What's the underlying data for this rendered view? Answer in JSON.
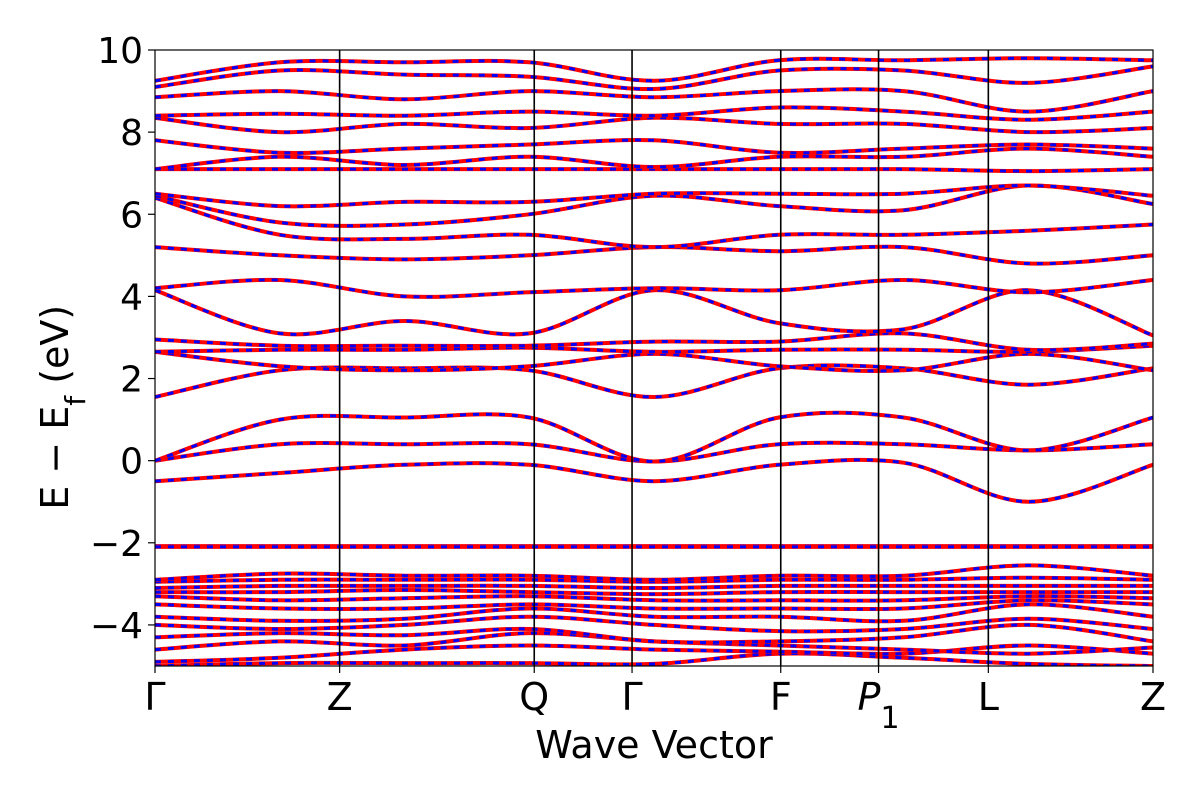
{
  "chart_data": {
    "type": "line",
    "title": "",
    "xlabel": "Wave Vector",
    "ylabel": "E − E_f (eV)",
    "ylabel_parts": {
      "main": "E − E",
      "sub": "f",
      "unit": " (eV)"
    },
    "ylim": [
      -5,
      10
    ],
    "y_ticks": [
      -4,
      -2,
      0,
      2,
      4,
      6,
      8,
      10
    ],
    "y_tick_labels": [
      "−4",
      "−2",
      "0",
      "2",
      "4",
      "6",
      "8",
      "10"
    ],
    "grid": false,
    "legend": "none",
    "k_points": [
      {
        "label": "Γ",
        "x": 0.0
      },
      {
        "label": "Z",
        "x": 0.185
      },
      {
        "label": "Q",
        "x": 0.38
      },
      {
        "label": "Γ",
        "x": 0.478
      },
      {
        "label": "F",
        "x": 0.627
      },
      {
        "label": "P",
        "sub": "1",
        "italic": true,
        "x": 0.725
      },
      {
        "label": "L",
        "x": 0.835
      },
      {
        "label": "Z",
        "x": 1.0
      }
    ],
    "series_style": [
      {
        "color": "#ff0000",
        "style": "solid"
      },
      {
        "color": "#0000ff",
        "style": "dashed"
      }
    ],
    "bands": [
      [
        -5.0,
        -4.93,
        -4.93,
        -4.93,
        -4.95,
        -4.7,
        -4.8,
        -4.95,
        -5.0
      ],
      [
        -4.9,
        -4.8,
        -4.6,
        -4.5,
        -4.6,
        -4.65,
        -4.7,
        -4.5,
        -4.7
      ],
      [
        -4.6,
        -4.4,
        -4.5,
        -4.2,
        -4.4,
        -4.5,
        -4.6,
        -4.7,
        -4.55
      ],
      [
        -4.3,
        -4.2,
        -4.25,
        -4.1,
        -4.4,
        -4.4,
        -4.3,
        -4.0,
        -4.4
      ],
      [
        -4.0,
        -4.1,
        -4.0,
        -3.8,
        -4.0,
        -4.15,
        -4.1,
        -3.85,
        -4.1
      ],
      [
        -3.8,
        -3.9,
        -3.85,
        -3.6,
        -3.8,
        -3.8,
        -3.9,
        -3.5,
        -3.8
      ],
      [
        -3.5,
        -3.6,
        -3.6,
        -3.5,
        -3.6,
        -3.6,
        -3.6,
        -3.4,
        -3.5
      ],
      [
        -3.3,
        -3.4,
        -3.35,
        -3.3,
        -3.4,
        -3.4,
        -3.4,
        -3.3,
        -3.35
      ],
      [
        -3.2,
        -3.2,
        -3.15,
        -3.2,
        -3.25,
        -3.2,
        -3.2,
        -3.2,
        -3.2
      ],
      [
        -3.1,
        -3.05,
        -3.05,
        -3.05,
        -3.1,
        -3.05,
        -3.05,
        -3.05,
        -3.05
      ],
      [
        -2.95,
        -2.9,
        -2.9,
        -2.9,
        -2.95,
        -2.9,
        -2.9,
        -2.85,
        -2.9
      ],
      [
        -2.9,
        -2.75,
        -2.8,
        -2.8,
        -2.9,
        -2.8,
        -2.8,
        -2.55,
        -2.8
      ],
      [
        -2.08,
        -2.08,
        -2.08,
        -2.08,
        -2.08,
        -2.08,
        -2.08,
        -2.08,
        -2.08
      ],
      [
        -2.1,
        -2.1,
        -2.1,
        -2.1,
        -2.1,
        -2.1,
        -2.1,
        -2.1,
        -2.1
      ],
      [
        -0.5,
        -0.3,
        -0.1,
        -0.1,
        -0.5,
        -0.1,
        -0.05,
        -1.0,
        -0.1
      ],
      [
        0.0,
        0.4,
        0.4,
        0.4,
        -0.02,
        0.4,
        0.4,
        0.25,
        0.4
      ],
      [
        0.0,
        1.0,
        1.05,
        1.05,
        -0.02,
        1.05,
        1.05,
        0.25,
        1.05
      ],
      [
        1.55,
        2.2,
        2.25,
        2.2,
        1.55,
        2.25,
        2.25,
        1.85,
        2.25
      ],
      [
        2.65,
        2.3,
        2.2,
        2.3,
        2.6,
        2.3,
        2.2,
        2.6,
        2.2
      ],
      [
        2.65,
        2.7,
        2.7,
        2.75,
        2.65,
        2.7,
        2.7,
        2.65,
        2.8
      ],
      [
        2.95,
        2.8,
        2.8,
        2.8,
        2.9,
        2.9,
        3.1,
        2.7,
        2.85
      ],
      [
        4.15,
        3.1,
        3.4,
        3.1,
        4.15,
        3.35,
        3.2,
        4.15,
        3.05
      ],
      [
        4.2,
        4.4,
        4.0,
        4.1,
        4.2,
        4.15,
        4.4,
        4.1,
        4.4
      ],
      [
        5.2,
        5.0,
        4.9,
        5.0,
        5.2,
        5.1,
        5.2,
        4.8,
        5.0
      ],
      [
        6.4,
        5.5,
        5.4,
        5.5,
        5.2,
        5.5,
        5.5,
        5.6,
        5.75
      ],
      [
        6.45,
        5.8,
        5.75,
        6.0,
        6.45,
        6.2,
        6.1,
        6.7,
        6.25
      ],
      [
        6.5,
        6.2,
        6.3,
        6.3,
        6.5,
        6.5,
        6.5,
        6.7,
        6.45
      ],
      [
        7.1,
        7.1,
        7.1,
        7.1,
        7.1,
        7.1,
        7.1,
        7.05,
        7.1
      ],
      [
        7.1,
        7.4,
        7.2,
        7.4,
        7.15,
        7.4,
        7.4,
        7.6,
        7.4
      ],
      [
        7.8,
        7.5,
        7.6,
        7.7,
        7.8,
        7.5,
        7.6,
        7.7,
        7.6
      ],
      [
        8.35,
        8.0,
        8.2,
        8.1,
        8.35,
        8.2,
        8.2,
        8.0,
        8.1
      ],
      [
        8.4,
        8.45,
        8.4,
        8.5,
        8.4,
        8.6,
        8.5,
        8.3,
        8.5
      ],
      [
        8.85,
        9.0,
        8.8,
        9.0,
        8.85,
        9.0,
        9.0,
        8.5,
        9.0
      ],
      [
        9.1,
        9.5,
        9.4,
        9.35,
        9.05,
        9.5,
        9.5,
        9.2,
        9.6
      ],
      [
        9.25,
        9.7,
        9.7,
        9.7,
        9.25,
        9.75,
        9.75,
        9.8,
        9.75
      ]
    ]
  }
}
